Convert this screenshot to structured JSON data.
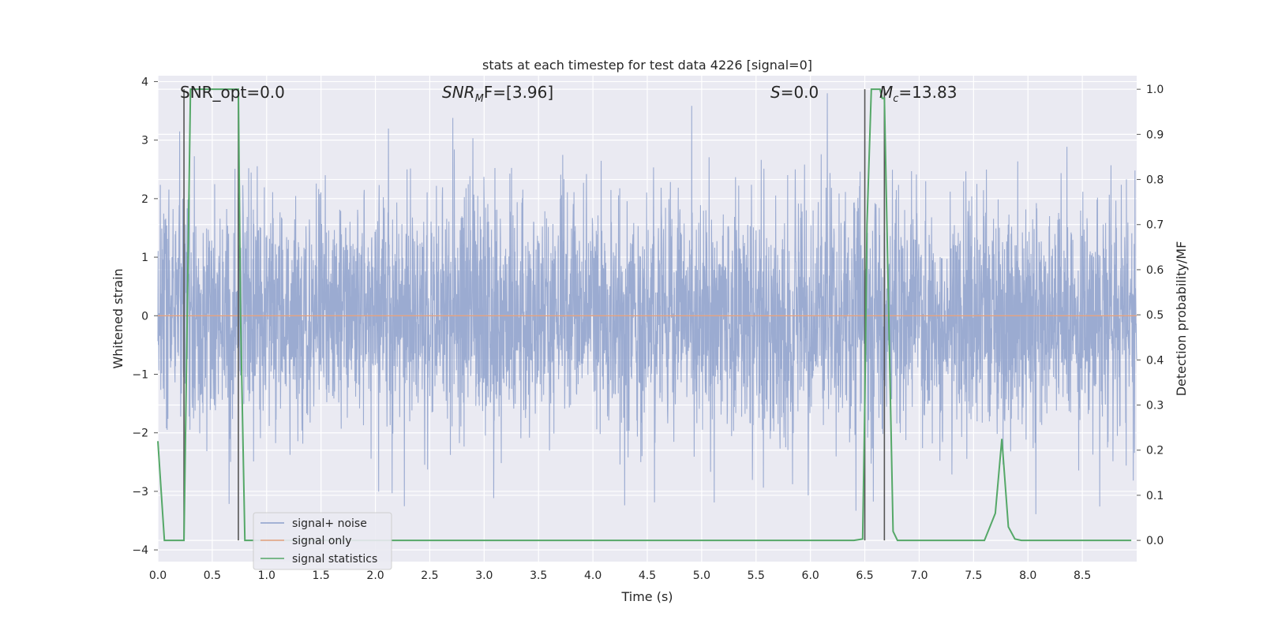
{
  "chart_data": {
    "type": "line",
    "title": "stats at each timestep for test data 4226 [signal=0]",
    "xlabel": "Time (s)",
    "ylabel_left": "Whitened strain",
    "ylabel_right": "Detection probability/MF",
    "xlim": [
      0.0,
      9.0
    ],
    "ylim_left": [
      -4.2,
      4.1
    ],
    "ylim_right": [
      -0.047,
      1.03
    ],
    "x_ticks": [
      "0.0",
      "0.5",
      "1.0",
      "1.5",
      "2.0",
      "2.5",
      "3.0",
      "3.5",
      "4.0",
      "4.5",
      "5.0",
      "5.5",
      "6.0",
      "6.5",
      "7.0",
      "7.5",
      "8.0",
      "8.5"
    ],
    "y_ticks_left": [
      "−4",
      "−3",
      "−2",
      "−1",
      "0",
      "1",
      "2",
      "3",
      "4"
    ],
    "y_ticks_right": [
      "0.0",
      "0.1",
      "0.2",
      "0.3",
      "0.4",
      "0.5",
      "0.6",
      "0.7",
      "0.8",
      "0.9",
      "1.0"
    ],
    "grid": true,
    "legend_position": "lower-left",
    "annotations": {
      "snr_opt": "SNR_opt=0.0",
      "snr_mf_main": "SNR",
      "snr_mf_sub": "M",
      "snr_mf_rest": "F=[3.96]",
      "s_main": "S",
      "s_rest": "=0.0",
      "mc_main": "M",
      "mc_sub": "c",
      "mc_rest": "=13.83"
    },
    "series": [
      {
        "name": "signal+ noise",
        "color": "#8da0cb",
        "axis": "left",
        "description_values": "whitened noise, approximately Gaussian with sigma ~1, range ~ -3.8 to 3.8"
      },
      {
        "name": "signal only",
        "color": "#e5a27f",
        "axis": "left",
        "values_constant": 0.0
      },
      {
        "name": "signal statistics",
        "color": "#55a868",
        "axis": "right",
        "x": [
          0.0,
          0.06,
          0.1,
          0.15,
          0.2,
          0.24,
          0.27,
          0.3,
          0.35,
          0.4,
          0.5,
          0.6,
          0.7,
          0.74,
          0.76,
          0.8,
          0.9,
          1.0,
          2.0,
          3.0,
          4.0,
          5.0,
          6.0,
          6.4,
          6.48,
          6.5,
          6.52,
          6.56,
          6.6,
          6.64,
          6.66,
          6.68,
          6.72,
          6.76,
          6.8,
          6.9,
          7.0,
          7.2,
          7.4,
          7.6,
          7.65,
          7.7,
          7.76,
          7.82,
          7.88,
          7.94,
          8.0,
          8.5,
          8.95
        ],
        "values": [
          0.22,
          0.0,
          0.0,
          0.0,
          0.0,
          0.0,
          0.5,
          1.0,
          1.0,
          1.0,
          1.0,
          1.0,
          1.0,
          1.0,
          0.5,
          0.0,
          0.0,
          0.0,
          0.0,
          0.0,
          0.0,
          0.0,
          0.0,
          0.0,
          0.003,
          0.3,
          0.7,
          1.0,
          1.0,
          1.0,
          0.98,
          0.98,
          0.5,
          0.02,
          0.0,
          0.0,
          0.0,
          0.0,
          0.0,
          0.0,
          0.03,
          0.06,
          0.225,
          0.03,
          0.003,
          0.0,
          0.0,
          0.0,
          0.0
        ]
      }
    ],
    "vertical_markers": {
      "color": "#555555",
      "x": [
        0.24,
        0.74,
        6.5,
        6.68
      ]
    }
  }
}
